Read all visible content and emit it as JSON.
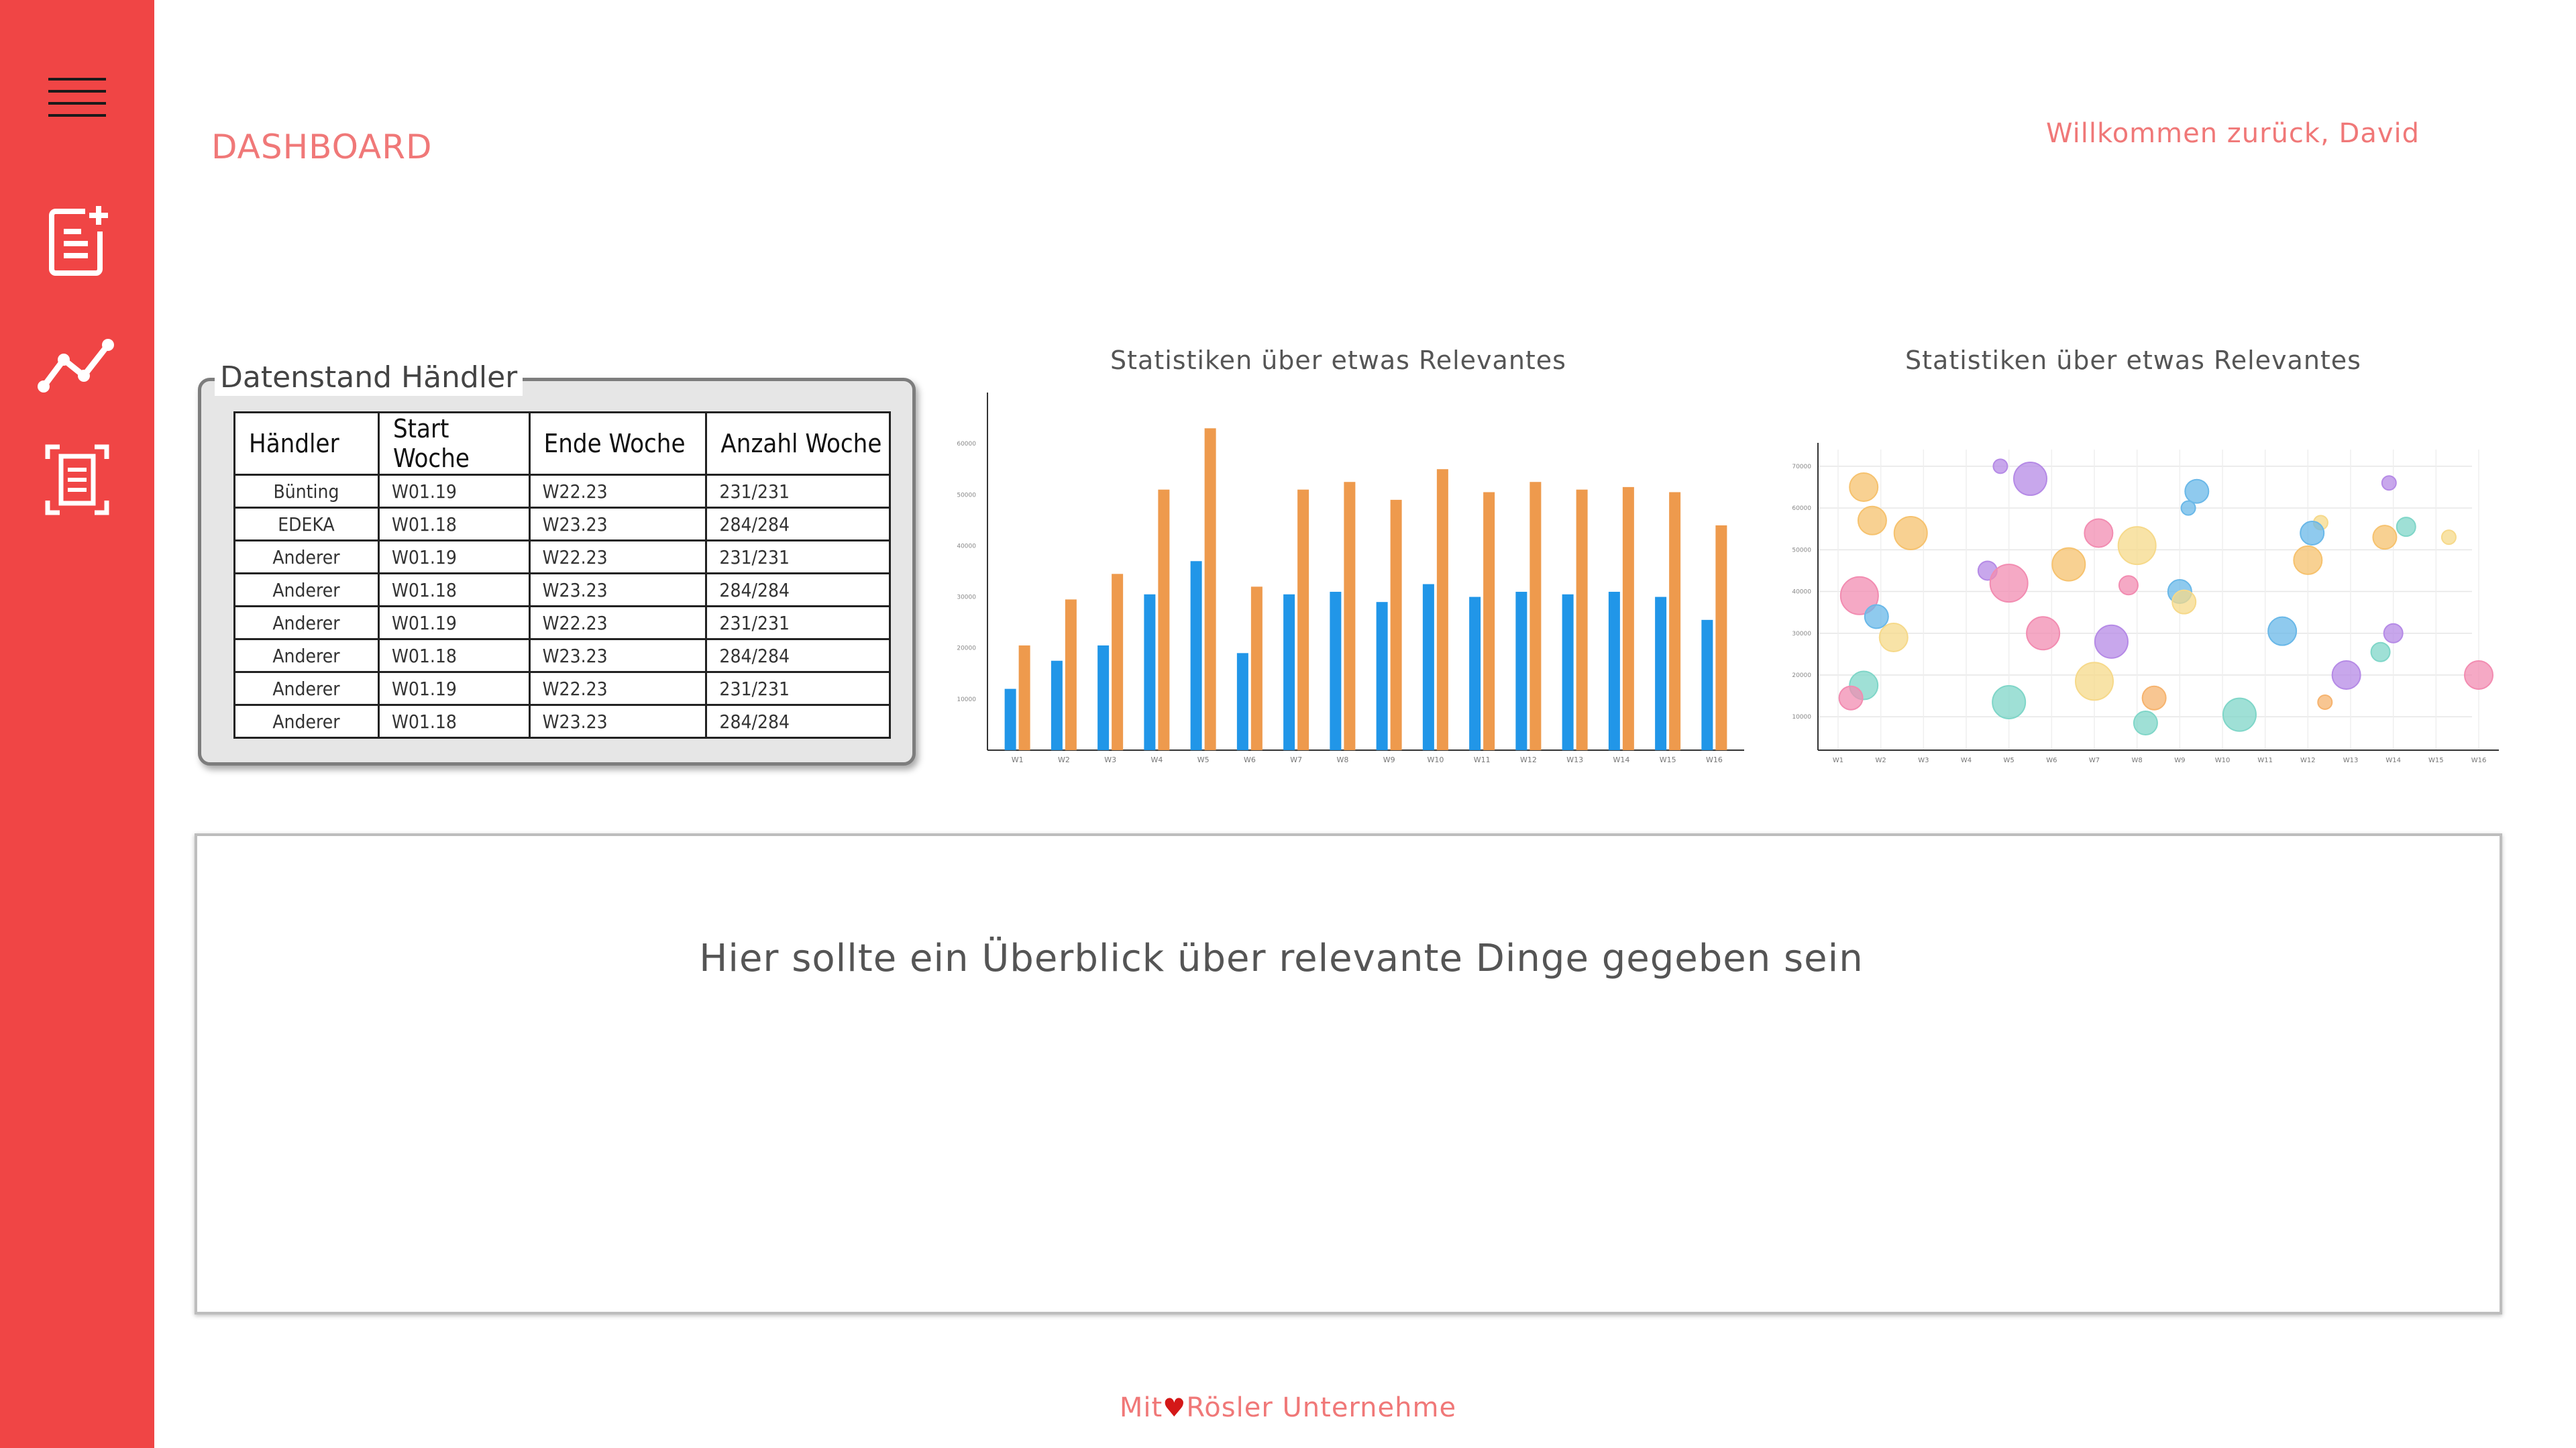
{
  "sidebar": {
    "items": [
      {
        "icon": "menu-icon"
      },
      {
        "icon": "new-document-icon"
      },
      {
        "icon": "line-chart-icon"
      },
      {
        "icon": "scan-document-icon"
      }
    ],
    "color": "#f04545"
  },
  "header": {
    "title": "DASHBOARD",
    "welcome": "Willkommen zurück, David"
  },
  "dealer_panel": {
    "legend": "Datenstand Händler",
    "columns": [
      "Händler",
      "Start Woche",
      "Ende Woche",
      "Anzahl Woche"
    ],
    "rows": [
      [
        "Bünting",
        "W01.19",
        "W22.23",
        "231/231"
      ],
      [
        "EDEKA",
        "W01.18",
        "W23.23",
        "284/284"
      ],
      [
        "Anderer",
        "W01.19",
        "W22.23",
        "231/231"
      ],
      [
        "Anderer",
        "W01.18",
        "W23.23",
        "284/284"
      ],
      [
        "Anderer",
        "W01.19",
        "W22.23",
        "231/231"
      ],
      [
        "Anderer",
        "W01.18",
        "W23.23",
        "284/284"
      ],
      [
        "Anderer",
        "W01.19",
        "W22.23",
        "231/231"
      ],
      [
        "Anderer",
        "W01.18",
        "W23.23",
        "284/284"
      ]
    ]
  },
  "chart_data": [
    {
      "type": "bar",
      "title": "Statistiken über etwas Relevantes",
      "categories": [
        "W1",
        "W2",
        "W3",
        "W4",
        "W5",
        "W6",
        "W7",
        "W8",
        "W9",
        "W10",
        "W11",
        "W12",
        "W13",
        "W14",
        "W15",
        "W16"
      ],
      "series": [
        {
          "values": [
            12000,
            17500,
            20500,
            30500,
            37000,
            19000,
            30500,
            31000,
            29000,
            32500,
            30000,
            31000,
            30500,
            31000,
            30000,
            25500
          ],
          "color": "#2196e8"
        },
        {
          "values": [
            20500,
            29500,
            34500,
            51000,
            63000,
            32000,
            51000,
            52500,
            49000,
            55000,
            50500,
            52500,
            51000,
            51500,
            50500,
            44000
          ],
          "color": "#ee9a4d"
        }
      ],
      "yticks": [
        10000,
        20000,
        30000,
        40000,
        50000,
        60000
      ],
      "ylim": [
        0,
        70000
      ],
      "grid": false
    },
    {
      "type": "scatter",
      "title": "Statistiken über etwas Relevantes",
      "categories": [
        "W1",
        "W2",
        "W3",
        "W4",
        "W5",
        "W6",
        "W7",
        "W8",
        "W9",
        "W10",
        "W11",
        "W12",
        "W13",
        "W14",
        "W15",
        "W16"
      ],
      "yticks": [
        10000,
        20000,
        30000,
        40000,
        50000,
        60000,
        70000
      ],
      "ylim": [
        2000,
        74000
      ],
      "grid": true,
      "points": [
        {
          "x": 1.6,
          "y": 65000,
          "r": 3,
          "color": "#f6c26e"
        },
        {
          "x": 1.8,
          "y": 57000,
          "r": 3,
          "color": "#f6c26e"
        },
        {
          "x": 1.5,
          "y": 39000,
          "r": 4,
          "color": "#f28cb1"
        },
        {
          "x": 1.9,
          "y": 34000,
          "r": 2.5,
          "color": "#6ab8e8"
        },
        {
          "x": 2.7,
          "y": 54000,
          "r": 3.5,
          "color": "#f6c26e"
        },
        {
          "x": 2.3,
          "y": 29000,
          "r": 3,
          "color": "#f6d98a"
        },
        {
          "x": 1.6,
          "y": 17500,
          "r": 3,
          "color": "#7fd6c8"
        },
        {
          "x": 1.3,
          "y": 14500,
          "r": 2.5,
          "color": "#f28cb1"
        },
        {
          "x": 4.8,
          "y": 70000,
          "r": 1.5,
          "color": "#b58ae6"
        },
        {
          "x": 5.5,
          "y": 67000,
          "r": 3.5,
          "color": "#b58ae6"
        },
        {
          "x": 4.5,
          "y": 45000,
          "r": 2,
          "color": "#b58ae6"
        },
        {
          "x": 5.0,
          "y": 42000,
          "r": 4,
          "color": "#f28cb1"
        },
        {
          "x": 5.8,
          "y": 30000,
          "r": 3.5,
          "color": "#f28cb1"
        },
        {
          "x": 5.0,
          "y": 13500,
          "r": 3.5,
          "color": "#7fd6c8"
        },
        {
          "x": 7.1,
          "y": 54000,
          "r": 3,
          "color": "#f28cb1"
        },
        {
          "x": 6.4,
          "y": 46500,
          "r": 3.5,
          "color": "#f6c26e"
        },
        {
          "x": 8.0,
          "y": 51000,
          "r": 4,
          "color": "#f6d98a"
        },
        {
          "x": 7.8,
          "y": 41500,
          "r": 2,
          "color": "#f28cb1"
        },
        {
          "x": 7.4,
          "y": 28000,
          "r": 3.5,
          "color": "#b58ae6"
        },
        {
          "x": 7.0,
          "y": 18500,
          "r": 4,
          "color": "#f6d98a"
        },
        {
          "x": 8.4,
          "y": 14500,
          "r": 2.5,
          "color": "#f6b36e"
        },
        {
          "x": 8.2,
          "y": 8500,
          "r": 2.5,
          "color": "#7fd6c8"
        },
        {
          "x": 9.4,
          "y": 64000,
          "r": 2.5,
          "color": "#6ab8e8"
        },
        {
          "x": 9.2,
          "y": 60000,
          "r": 1.5,
          "color": "#6ab8e8"
        },
        {
          "x": 9.0,
          "y": 40000,
          "r": 2.5,
          "color": "#6ab8e8"
        },
        {
          "x": 9.1,
          "y": 37500,
          "r": 2.5,
          "color": "#f6d98a"
        },
        {
          "x": 10.4,
          "y": 10500,
          "r": 3.5,
          "color": "#7fd6c8"
        },
        {
          "x": 11.4,
          "y": 30500,
          "r": 3,
          "color": "#6ab8e8"
        },
        {
          "x": 12.3,
          "y": 56500,
          "r": 1.5,
          "color": "#f6d98a"
        },
        {
          "x": 12.1,
          "y": 54000,
          "r": 2.5,
          "color": "#6ab8e8"
        },
        {
          "x": 12.0,
          "y": 47500,
          "r": 3,
          "color": "#f6c26e"
        },
        {
          "x": 12.9,
          "y": 20000,
          "r": 3,
          "color": "#b58ae6"
        },
        {
          "x": 12.4,
          "y": 13500,
          "r": 1.5,
          "color": "#f6b36e"
        },
        {
          "x": 13.9,
          "y": 66000,
          "r": 1.5,
          "color": "#b58ae6"
        },
        {
          "x": 14.3,
          "y": 55500,
          "r": 2,
          "color": "#7fd6c8"
        },
        {
          "x": 13.8,
          "y": 53000,
          "r": 2.5,
          "color": "#f6c26e"
        },
        {
          "x": 14.0,
          "y": 30000,
          "r": 2,
          "color": "#b58ae6"
        },
        {
          "x": 13.7,
          "y": 25500,
          "r": 2,
          "color": "#7fd6c8"
        },
        {
          "x": 15.3,
          "y": 53000,
          "r": 1.5,
          "color": "#f6d98a"
        },
        {
          "x": 16.0,
          "y": 20000,
          "r": 3,
          "color": "#f28cb1"
        }
      ]
    }
  ],
  "overview": {
    "text": "Hier sollte ein Überblick über relevante Dinge gegeben sein"
  },
  "footer": {
    "prefix": "Mit",
    "heart": "♥",
    "suffix": "Rösler Unternehme"
  }
}
